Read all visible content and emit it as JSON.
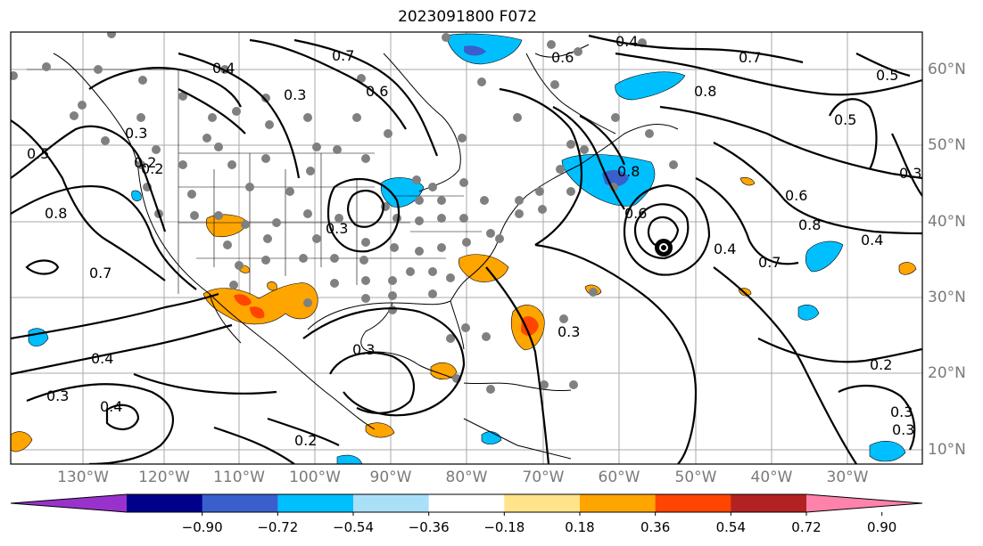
{
  "title": "2023091800 F072",
  "lat_labels": [
    "60°N",
    "50°N",
    "40°N",
    "30°N",
    "20°N",
    "10°N"
  ],
  "lon_labels": [
    "130°W",
    "120°W",
    "110°W",
    "100°W",
    "90°W",
    "80°W",
    "70°W",
    "60°W",
    "50°W",
    "40°W",
    "30°W"
  ],
  "colorbar": {
    "colors": [
      "#9932cc",
      "#00008b",
      "#3a5fcd",
      "#00bfff",
      "#aadff8",
      "#ffffff",
      "#ffe48a",
      "#ffa500",
      "#ff4500",
      "#b22222",
      "#ff82ab"
    ],
    "labels": [
      "−0.90",
      "−0.72",
      "−0.54",
      "−0.36",
      "−0.18",
      "0.18",
      "0.36",
      "0.54",
      "0.72",
      "0.90"
    ]
  },
  "contour_labels": [
    "0.7",
    "0.4",
    "0.5",
    "0.6",
    "0.8",
    "0.3",
    "0.2",
    "0.7",
    "0.4",
    "0.3",
    "0.4",
    "0.3",
    "0.2",
    "0.8",
    "0.7",
    "0.6",
    "0.8",
    "0.5",
    "0.3",
    "0.6",
    "0.8",
    "0.4",
    "0.7",
    "0.3",
    "0.2",
    "0.3",
    "0.4",
    "0.3",
    "0.2",
    "0.3",
    "0.6",
    "0.5",
    "0.4",
    "0.3"
  ]
}
